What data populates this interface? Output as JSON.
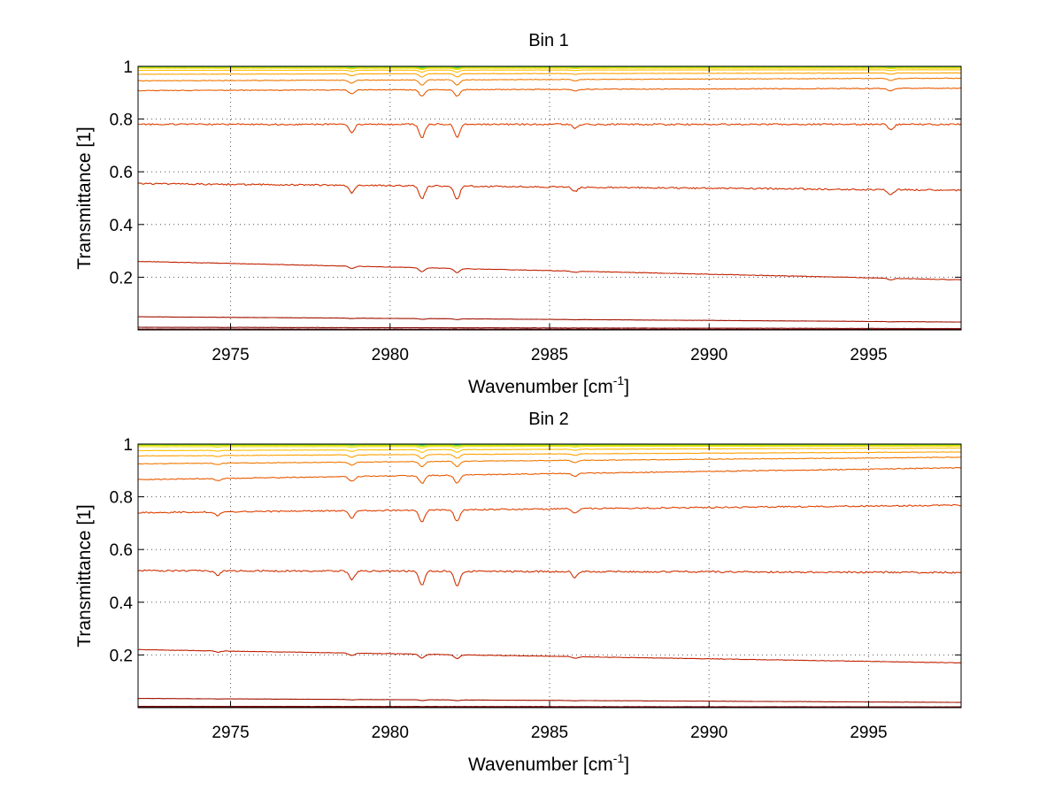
{
  "chart_data": [
    {
      "type": "line",
      "title": "Bin 1",
      "xlabel": "Wavenumber [cm",
      "xlabel_sup": "-1",
      "xlabel_end": "]",
      "ylabel": "Transmittance [1]",
      "xlim": [
        2972.1,
        2997.9
      ],
      "ylim": [
        0.0,
        1.0
      ],
      "xticks": [
        2975,
        2980,
        2985,
        2990,
        2995
      ],
      "xtick_labels": [
        "2975",
        "2980",
        "2985",
        "2990",
        "2995"
      ],
      "yticks": [
        0.2,
        0.4,
        0.6,
        0.8,
        1.0
      ],
      "ytick_labels": [
        "0.2",
        "0.4",
        "0.6",
        "0.8",
        "1"
      ],
      "grid": true,
      "dips": [
        {
          "x": 2978.8,
          "depth": 0.6
        },
        {
          "x": 2981.0,
          "depth": 1.0
        },
        {
          "x": 2982.1,
          "depth": 1.0
        },
        {
          "x": 2985.8,
          "depth": 0.3
        },
        {
          "x": 2995.7,
          "depth": 0.4
        }
      ],
      "series": [
        {
          "color": "#0000aa",
          "start": 1.0,
          "end": 1.0,
          "dip": 0.0005
        },
        {
          "color": "#00a0ff",
          "start": 1.0,
          "end": 0.999,
          "dip": 0.001
        },
        {
          "color": "#10c8a0",
          "start": 0.999,
          "end": 0.998,
          "dip": 0.002
        },
        {
          "color": "#60d040",
          "start": 0.998,
          "end": 0.997,
          "dip": 0.003
        },
        {
          "color": "#c8e000",
          "start": 0.995,
          "end": 0.995,
          "dip": 0.004
        },
        {
          "color": "#f0e000",
          "start": 0.993,
          "end": 0.993,
          "dip": 0.005
        },
        {
          "color": "#ffc000",
          "start": 0.985,
          "end": 0.987,
          "dip": 0.008
        },
        {
          "color": "#ffa000",
          "start": 0.97,
          "end": 0.975,
          "dip": 0.012
        },
        {
          "color": "#f07800",
          "start": 0.945,
          "end": 0.955,
          "dip": 0.02
        },
        {
          "color": "#e85a00",
          "start": 0.908,
          "end": 0.917,
          "dip": 0.025
        },
        {
          "color": "#e04000",
          "start": 0.78,
          "end": 0.78,
          "dip": 0.05
        },
        {
          "color": "#d03000",
          "start": 0.555,
          "end": 0.53,
          "dip": 0.05
        },
        {
          "color": "#c02000",
          "start": 0.26,
          "end": 0.19,
          "dip": 0.015
        },
        {
          "color": "#a01000",
          "start": 0.05,
          "end": 0.03,
          "dip": 0.003
        },
        {
          "color": "#800000",
          "start": 0.01,
          "end": 0.005,
          "dip": 0.0
        },
        {
          "color": "#600000",
          "start": 0.003,
          "end": 0.002,
          "dip": 0.0
        }
      ]
    },
    {
      "type": "line",
      "title": "Bin 2",
      "xlabel": "Wavenumber [cm",
      "xlabel_sup": "-1",
      "xlabel_end": "]",
      "ylabel": "Transmittance [1]",
      "xlim": [
        2972.1,
        2997.9
      ],
      "ylim": [
        0.0,
        1.0
      ],
      "xticks": [
        2975,
        2980,
        2985,
        2990,
        2995
      ],
      "xtick_labels": [
        "2975",
        "2980",
        "2985",
        "2990",
        "2995"
      ],
      "yticks": [
        0.2,
        0.4,
        0.6,
        0.8,
        1.0
      ],
      "ytick_labels": [
        "0.2",
        "0.4",
        "0.6",
        "0.8",
        "1"
      ],
      "grid": true,
      "dips": [
        {
          "x": 2974.6,
          "depth": 0.3
        },
        {
          "x": 2978.8,
          "depth": 0.6
        },
        {
          "x": 2981.0,
          "depth": 1.0
        },
        {
          "x": 2982.1,
          "depth": 1.0
        },
        {
          "x": 2985.8,
          "depth": 0.4
        }
      ],
      "series": [
        {
          "color": "#0000aa",
          "start": 1.0,
          "end": 1.0,
          "dip": 0.0005
        },
        {
          "color": "#00a0ff",
          "start": 1.0,
          "end": 0.999,
          "dip": 0.001
        },
        {
          "color": "#10c8a0",
          "start": 0.999,
          "end": 0.998,
          "dip": 0.002
        },
        {
          "color": "#60d040",
          "start": 0.998,
          "end": 0.997,
          "dip": 0.003
        },
        {
          "color": "#c8e000",
          "start": 0.995,
          "end": 0.995,
          "dip": 0.004
        },
        {
          "color": "#f0e000",
          "start": 0.99,
          "end": 0.992,
          "dip": 0.006
        },
        {
          "color": "#ffc000",
          "start": 0.975,
          "end": 0.985,
          "dip": 0.01
        },
        {
          "color": "#ffa000",
          "start": 0.955,
          "end": 0.97,
          "dip": 0.015
        },
        {
          "color": "#f07800",
          "start": 0.925,
          "end": 0.95,
          "dip": 0.02
        },
        {
          "color": "#e85a00",
          "start": 0.865,
          "end": 0.91,
          "dip": 0.03
        },
        {
          "color": "#e04000",
          "start": 0.74,
          "end": 0.768,
          "dip": 0.045
        },
        {
          "color": "#d03000",
          "start": 0.52,
          "end": 0.513,
          "dip": 0.055
        },
        {
          "color": "#c02000",
          "start": 0.22,
          "end": 0.17,
          "dip": 0.015
        },
        {
          "color": "#a01000",
          "start": 0.035,
          "end": 0.02,
          "dip": 0.003
        },
        {
          "color": "#800000",
          "start": 0.005,
          "end": 0.003,
          "dip": 0.0
        },
        {
          "color": "#600000",
          "start": 0.002,
          "end": 0.001,
          "dip": 0.0
        }
      ]
    }
  ]
}
